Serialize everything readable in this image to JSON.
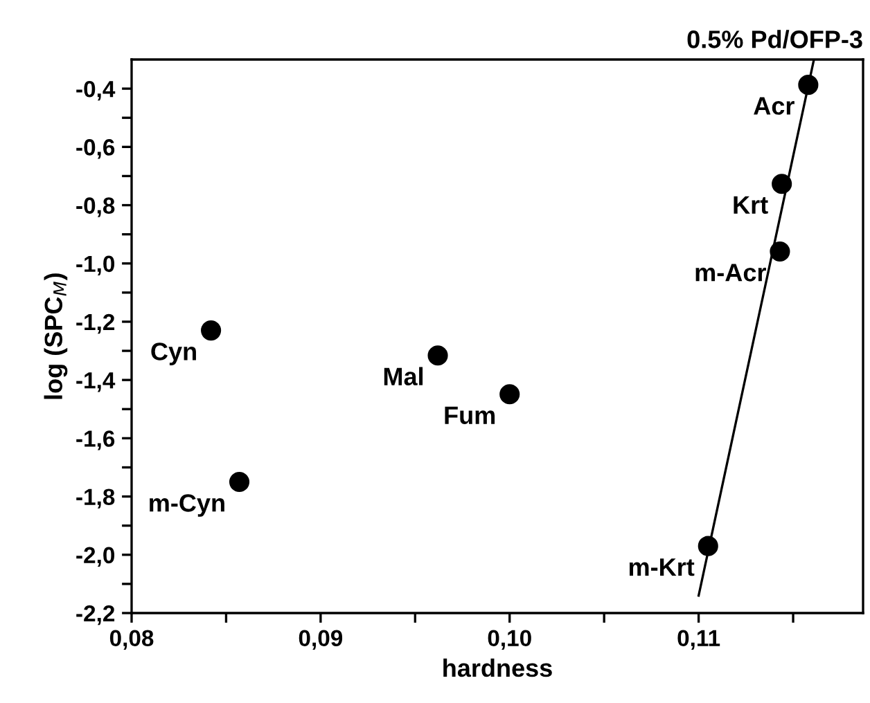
{
  "chart_data": {
    "type": "scatter",
    "title": "0.5% Pd/OFP-3",
    "xlabel": "hardness",
    "ylabel": "log (SPC$_{M}$)",
    "xlim": [
      0.08,
      0.1187
    ],
    "ylim": [
      -2.2,
      -0.3
    ],
    "xticks": [
      {
        "value": 0.08,
        "label": "0,08"
      },
      {
        "value": 0.085,
        "label": null
      },
      {
        "value": 0.09,
        "label": "0,09"
      },
      {
        "value": 0.095,
        "label": null
      },
      {
        "value": 0.1,
        "label": "0,10"
      },
      {
        "value": 0.105,
        "label": null
      },
      {
        "value": 0.11,
        "label": "0,11"
      },
      {
        "value": 0.115,
        "label": null
      }
    ],
    "yticks": [
      {
        "value": -2.2,
        "label": "-2,2"
      },
      {
        "value": -2.1,
        "label": null
      },
      {
        "value": -2.0,
        "label": "-2,0"
      },
      {
        "value": -1.9,
        "label": null
      },
      {
        "value": -1.8,
        "label": "-1,8"
      },
      {
        "value": -1.7,
        "label": null
      },
      {
        "value": -1.6,
        "label": "-1,6"
      },
      {
        "value": -1.5,
        "label": null
      },
      {
        "value": -1.4,
        "label": "-1,4"
      },
      {
        "value": -1.3,
        "label": null
      },
      {
        "value": -1.2,
        "label": "-1,2"
      },
      {
        "value": -1.1,
        "label": null
      },
      {
        "value": -1.0,
        "label": "-1,0"
      },
      {
        "value": -0.9,
        "label": null
      },
      {
        "value": -0.8,
        "label": "-0,8"
      },
      {
        "value": -0.7,
        "label": null
      },
      {
        "value": -0.6,
        "label": "-0,6"
      },
      {
        "value": -0.5,
        "label": null
      },
      {
        "value": -0.4,
        "label": "-0,4"
      }
    ],
    "grid": false,
    "marker": "circle",
    "series": [
      {
        "color": "#000000",
        "x": [
          0.0842,
          0.0857,
          0.0962,
          0.1,
          0.1158,
          0.1144,
          0.1143,
          0.1105
        ],
        "values": [
          -1.23,
          -1.75,
          -1.316,
          -1.449,
          -0.387,
          -0.727,
          -0.959,
          -1.97
        ]
      },
      {
        "type": "line",
        "color": "#000000",
        "marker": "none",
        "line_style": "solid",
        "x": [
          0.11,
          0.1161
        ],
        "values": [
          -2.14,
          -0.3
        ]
      }
    ],
    "annotations": [
      {
        "text": "Cyn",
        "x": 0.0842,
        "y": -1.23
      },
      {
        "text": "m-Cyn",
        "x": 0.0857,
        "y": -1.75
      },
      {
        "text": "Mal",
        "x": 0.0962,
        "y": -1.316
      },
      {
        "text": "Fum",
        "x": 0.1,
        "y": -1.449
      },
      {
        "text": "Acr",
        "x": 0.1158,
        "y": -0.387
      },
      {
        "text": "Krt",
        "x": 0.1144,
        "y": -0.727
      },
      {
        "text": "m-Acr",
        "x": 0.1143,
        "y": -0.959
      },
      {
        "text": "m-Krt",
        "x": 0.1105,
        "y": -1.97
      }
    ]
  }
}
